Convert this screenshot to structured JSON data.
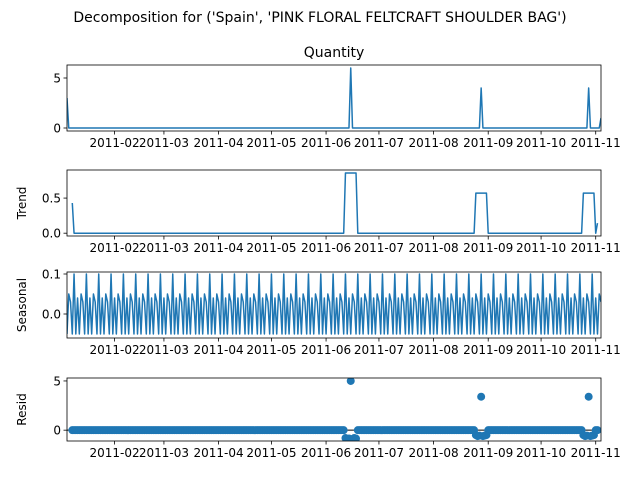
{
  "figure": {
    "suptitle": "Decomposition for ('Spain', 'PINK FLORAL FELTCRAFT SHOULDER BAG')"
  },
  "colors": {
    "series": "#1f77b4",
    "axis": "#000000",
    "zero_line": "#000000"
  },
  "chart_data": [
    {
      "type": "line",
      "panel": "observed",
      "title": "Quantity",
      "ylabel": "",
      "x_start": "2011-01-05",
      "x_end": "2011-11-04",
      "xlim": [
        "2011-01-05",
        "2011-11-04"
      ],
      "xticks": [
        "2011-02",
        "2011-03",
        "2011-04",
        "2011-05",
        "2011-06",
        "2011-07",
        "2011-08",
        "2011-09",
        "2011-10",
        "2011-11"
      ],
      "ylim": [
        -0.3,
        6.3
      ],
      "yticks": [
        0,
        5
      ],
      "baseline": 0,
      "points": [
        {
          "x": "2011-01-05",
          "y": 3
        },
        {
          "x": "2011-01-06",
          "y": 0
        },
        {
          "x": "2011-06-14",
          "y": 0
        },
        {
          "x": "2011-06-15",
          "y": 6
        },
        {
          "x": "2011-06-16",
          "y": 0
        },
        {
          "x": "2011-08-27",
          "y": 0
        },
        {
          "x": "2011-08-28",
          "y": 4
        },
        {
          "x": "2011-08-29",
          "y": 0
        },
        {
          "x": "2011-10-27",
          "y": 0
        },
        {
          "x": "2011-10-28",
          "y": 4
        },
        {
          "x": "2011-10-29",
          "y": 0
        },
        {
          "x": "2011-11-03",
          "y": 0
        },
        {
          "x": "2011-11-04",
          "y": 1
        }
      ]
    },
    {
      "type": "line",
      "panel": "trend",
      "title": "",
      "ylabel": "Trend",
      "xlim": [
        "2011-01-05",
        "2011-11-04"
      ],
      "xticks": [
        "2011-02",
        "2011-03",
        "2011-04",
        "2011-05",
        "2011-06",
        "2011-07",
        "2011-08",
        "2011-09",
        "2011-10",
        "2011-11"
      ],
      "ylim": [
        -0.04,
        0.9
      ],
      "yticks": [
        0.0,
        0.5
      ],
      "points": [
        {
          "x": "2011-01-08",
          "y": 0.43
        },
        {
          "x": "2011-01-09",
          "y": 0
        },
        {
          "x": "2011-06-11",
          "y": 0
        },
        {
          "x": "2011-06-12",
          "y": 0.857
        },
        {
          "x": "2011-06-18",
          "y": 0.857
        },
        {
          "x": "2011-06-19",
          "y": 0
        },
        {
          "x": "2011-08-24",
          "y": 0
        },
        {
          "x": "2011-08-25",
          "y": 0.571
        },
        {
          "x": "2011-08-31",
          "y": 0.571
        },
        {
          "x": "2011-09-01",
          "y": 0
        },
        {
          "x": "2011-10-24",
          "y": 0
        },
        {
          "x": "2011-10-25",
          "y": 0.571
        },
        {
          "x": "2011-10-31",
          "y": 0.571
        },
        {
          "x": "2011-11-01",
          "y": 0
        },
        {
          "x": "2011-11-02",
          "y": 0.143
        }
      ]
    },
    {
      "type": "line",
      "panel": "seasonal",
      "title": "",
      "ylabel": "Seasonal",
      "xlim": [
        "2011-01-05",
        "2011-11-04"
      ],
      "xticks": [
        "2011-02",
        "2011-03",
        "2011-04",
        "2011-05",
        "2011-06",
        "2011-07",
        "2011-08",
        "2011-09",
        "2011-10",
        "2011-11"
      ],
      "ylim": [
        -0.06,
        0.105
      ],
      "yticks": [
        0.0,
        0.1
      ],
      "period_days": 7,
      "weekly_pattern": [
        -0.05,
        0.05,
        0.03,
        -0.05,
        0.1,
        -0.05,
        0.04
      ]
    },
    {
      "type": "scatter",
      "panel": "resid",
      "title": "",
      "ylabel": "Resid",
      "xlim": [
        "2011-01-05",
        "2011-11-04"
      ],
      "xticks": [
        "2011-02",
        "2011-03",
        "2011-04",
        "2011-05",
        "2011-06",
        "2011-07",
        "2011-08",
        "2011-09",
        "2011-10",
        "2011-11"
      ],
      "ylim": [
        -1.1,
        5.3
      ],
      "yticks": [
        0,
        5
      ],
      "baseline": 0,
      "default_resid": 0.0,
      "points": [
        {
          "x": "2011-06-12",
          "y": -0.8
        },
        {
          "x": "2011-06-13",
          "y": -0.9
        },
        {
          "x": "2011-06-14",
          "y": -0.85
        },
        {
          "x": "2011-06-15",
          "y": 5.0
        },
        {
          "x": "2011-06-16",
          "y": -0.9
        },
        {
          "x": "2011-06-17",
          "y": -0.8
        },
        {
          "x": "2011-06-18",
          "y": -0.85
        },
        {
          "x": "2011-08-25",
          "y": -0.5
        },
        {
          "x": "2011-08-26",
          "y": -0.6
        },
        {
          "x": "2011-08-27",
          "y": -0.55
        },
        {
          "x": "2011-08-28",
          "y": 3.4
        },
        {
          "x": "2011-08-29",
          "y": -0.6
        },
        {
          "x": "2011-08-30",
          "y": -0.55
        },
        {
          "x": "2011-08-31",
          "y": -0.5
        },
        {
          "x": "2011-10-25",
          "y": -0.5
        },
        {
          "x": "2011-10-26",
          "y": -0.6
        },
        {
          "x": "2011-10-27",
          "y": -0.55
        },
        {
          "x": "2011-10-28",
          "y": 3.4
        },
        {
          "x": "2011-10-29",
          "y": -0.6
        },
        {
          "x": "2011-10-30",
          "y": -0.55
        },
        {
          "x": "2011-10-31",
          "y": -0.5
        }
      ]
    }
  ]
}
